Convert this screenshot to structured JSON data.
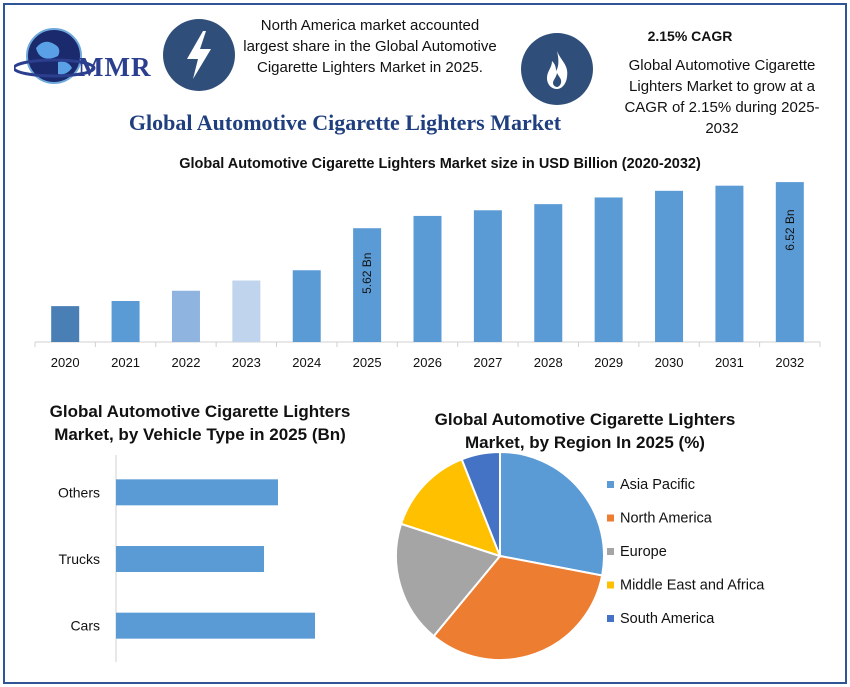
{
  "header": {
    "logo_text": "MMR",
    "left_info": "North America market accounted largest share in the Global Automotive Cigarette Lighters Market in 2025.",
    "cagr_title": "2.15% CAGR",
    "right_info": "Global Automotive Cigarette Lighters Market to grow at a CAGR of 2.15% during 2025-2032",
    "main_title": "Global Automotive Cigarette Lighters Market",
    "left_icon": "lightning-icon",
    "right_icon": "flame-icon"
  },
  "colors": {
    "border": "#2f5597",
    "icon_bg": "#2f4f7a",
    "title": "#1f3f7f",
    "bar_blue": "#5b9bd5"
  },
  "chart_data": [
    {
      "type": "bar",
      "title": "Global Automotive Cigarette Lighters Market size in USD Billion (2020-2032)",
      "categories": [
        "2020",
        "2021",
        "2022",
        "2023",
        "2024",
        "2025",
        "2026",
        "2027",
        "2028",
        "2029",
        "2030",
        "2031",
        "2032"
      ],
      "values": [
        4.1,
        4.2,
        4.4,
        4.6,
        4.8,
        5.62,
        5.86,
        5.97,
        6.09,
        6.22,
        6.35,
        6.45,
        6.52
      ],
      "bar_colors": [
        "#4a7fb5",
        "#5b9bd5",
        "#8fb4e0",
        "#c0d4ee",
        "#5b9bd5",
        "#5b9bd5",
        "#5b9bd5",
        "#5b9bd5",
        "#5b9bd5",
        "#5b9bd5",
        "#5b9bd5",
        "#5b9bd5",
        "#5b9bd5"
      ],
      "data_labels": [
        {
          "category": "2025",
          "text": "5.62 Bn"
        },
        {
          "category": "2032",
          "text": "6.52 Bn"
        }
      ],
      "ylim": [
        3.4,
        6.6
      ],
      "xlabel": "",
      "ylabel": ""
    },
    {
      "type": "bar",
      "orientation": "horizontal",
      "title": "Global Automotive Cigarette Lighters Market, by Vehicle Type in 2025 (Bn)",
      "title_lines": [
        "Global Automotive Cigarette Lighters",
        "Market, by Vehicle Type in 2025 (Bn)"
      ],
      "categories": [
        "Others",
        "Trucks",
        "Cars"
      ],
      "values": [
        1.62,
        1.48,
        1.99
      ],
      "xlim": [
        0,
        2.5
      ],
      "color": "#5b9bd5"
    },
    {
      "type": "pie",
      "title": "Global Automotive Cigarette Lighters Market, by Region In 2025 (%)",
      "title_lines": [
        "Global Automotive Cigarette Lighters",
        "Market, by Region In 2025 (%)"
      ],
      "labels": [
        "Asia Pacific",
        "North America",
        "Europe",
        "Middle East and Africa",
        "South America"
      ],
      "values": [
        28,
        33,
        19,
        14,
        6
      ],
      "colors": [
        "#5b9bd5",
        "#ed7d31",
        "#a5a5a5",
        "#ffc000",
        "#4472c4"
      ],
      "legend": "right"
    }
  ]
}
